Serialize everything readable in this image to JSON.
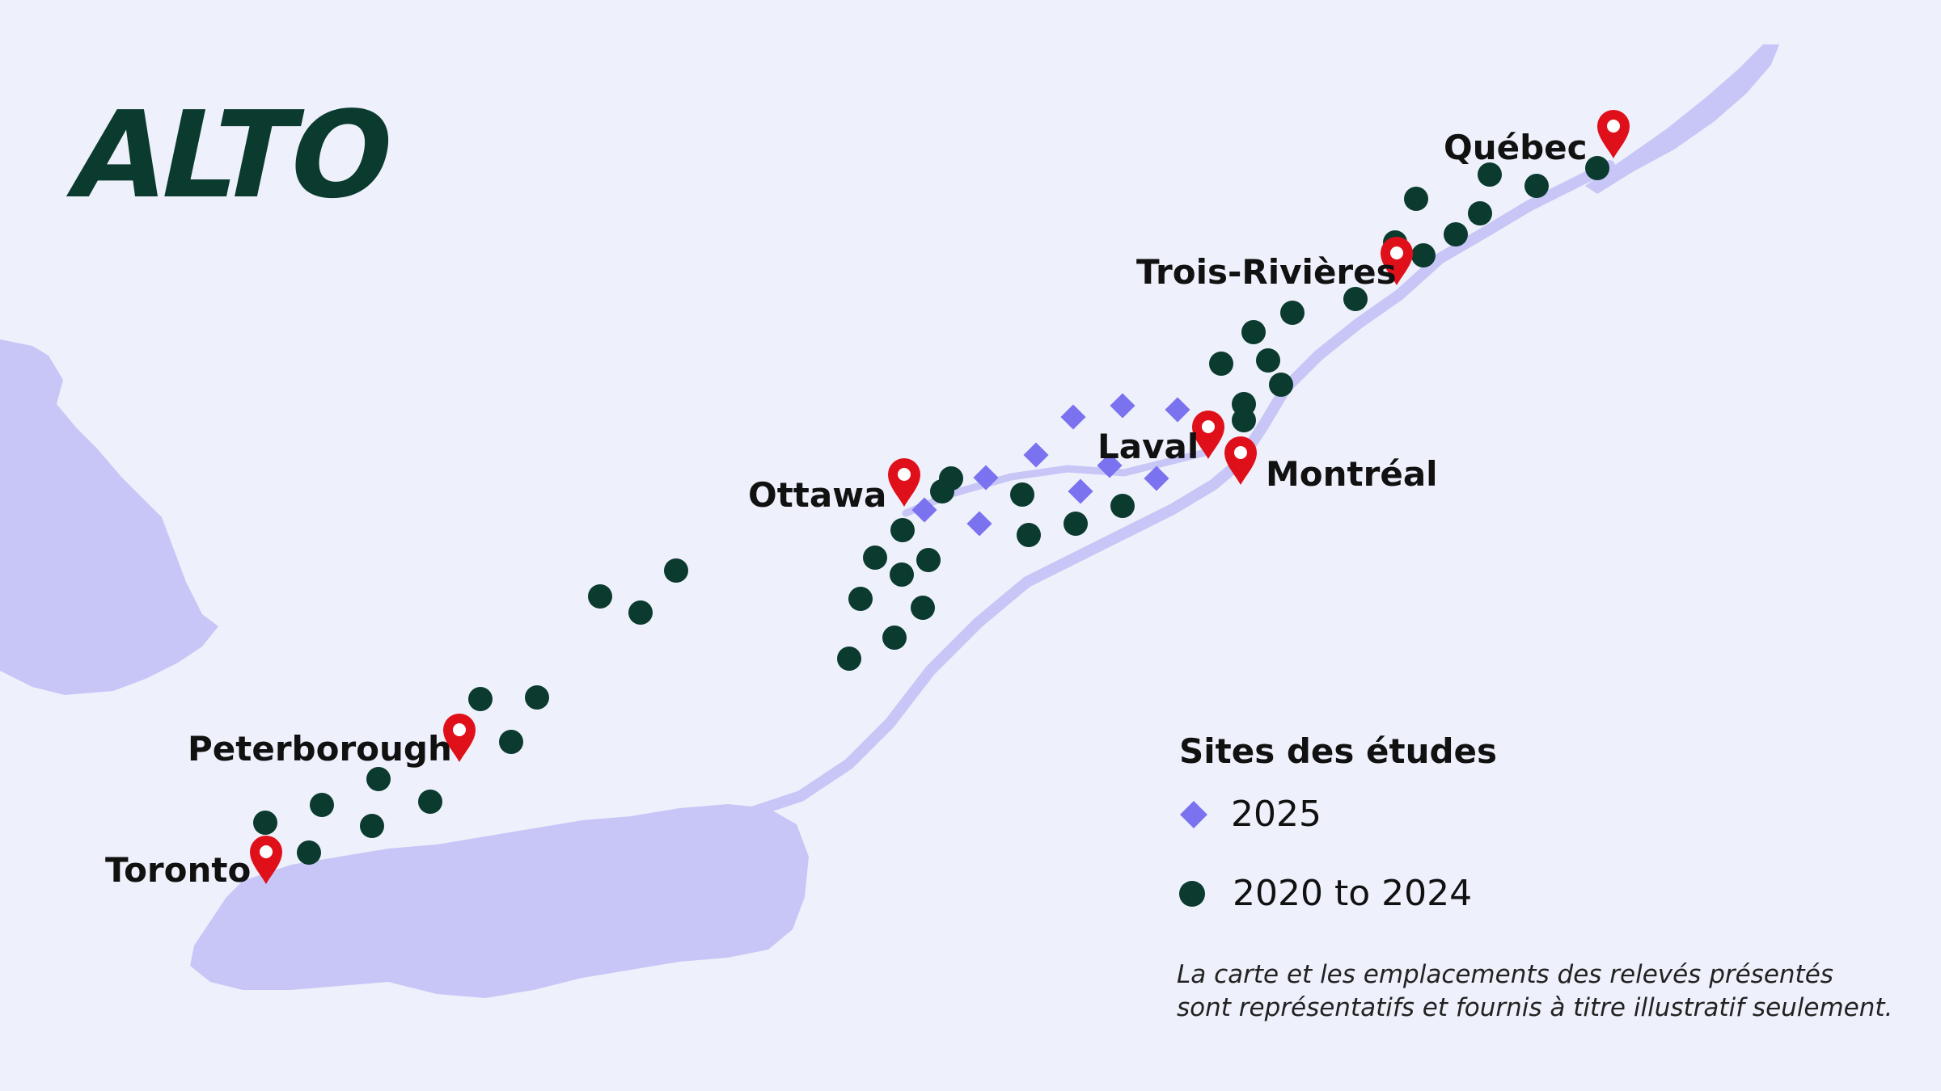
{
  "brand": {
    "logo_text": "ALTO",
    "color": "#0b3a2e"
  },
  "colors": {
    "background": "#eef1fb",
    "water": "#c7c6f7",
    "site_2025": "#7b72f0",
    "site_2020_2024": "#0b3a2e",
    "city_marker": "#e0101a"
  },
  "cities": [
    {
      "name": "Québec"
    },
    {
      "name": "Trois-Rivières"
    },
    {
      "name": "Laval"
    },
    {
      "name": "Montréal"
    },
    {
      "name": "Ottawa"
    },
    {
      "name": "Peterborough"
    },
    {
      "name": "Toronto"
    }
  ],
  "legend": {
    "title": "Sites des études",
    "items": [
      {
        "label": "2025",
        "symbol": "diamond-icon"
      },
      {
        "label": "2020 to 2024",
        "symbol": "circle-icon"
      }
    ]
  },
  "disclaimer": {
    "line1": "La carte et les emplacements des relevés présentés",
    "line2": "sont représentatifs et fournis à titre illustratif seulement."
  }
}
